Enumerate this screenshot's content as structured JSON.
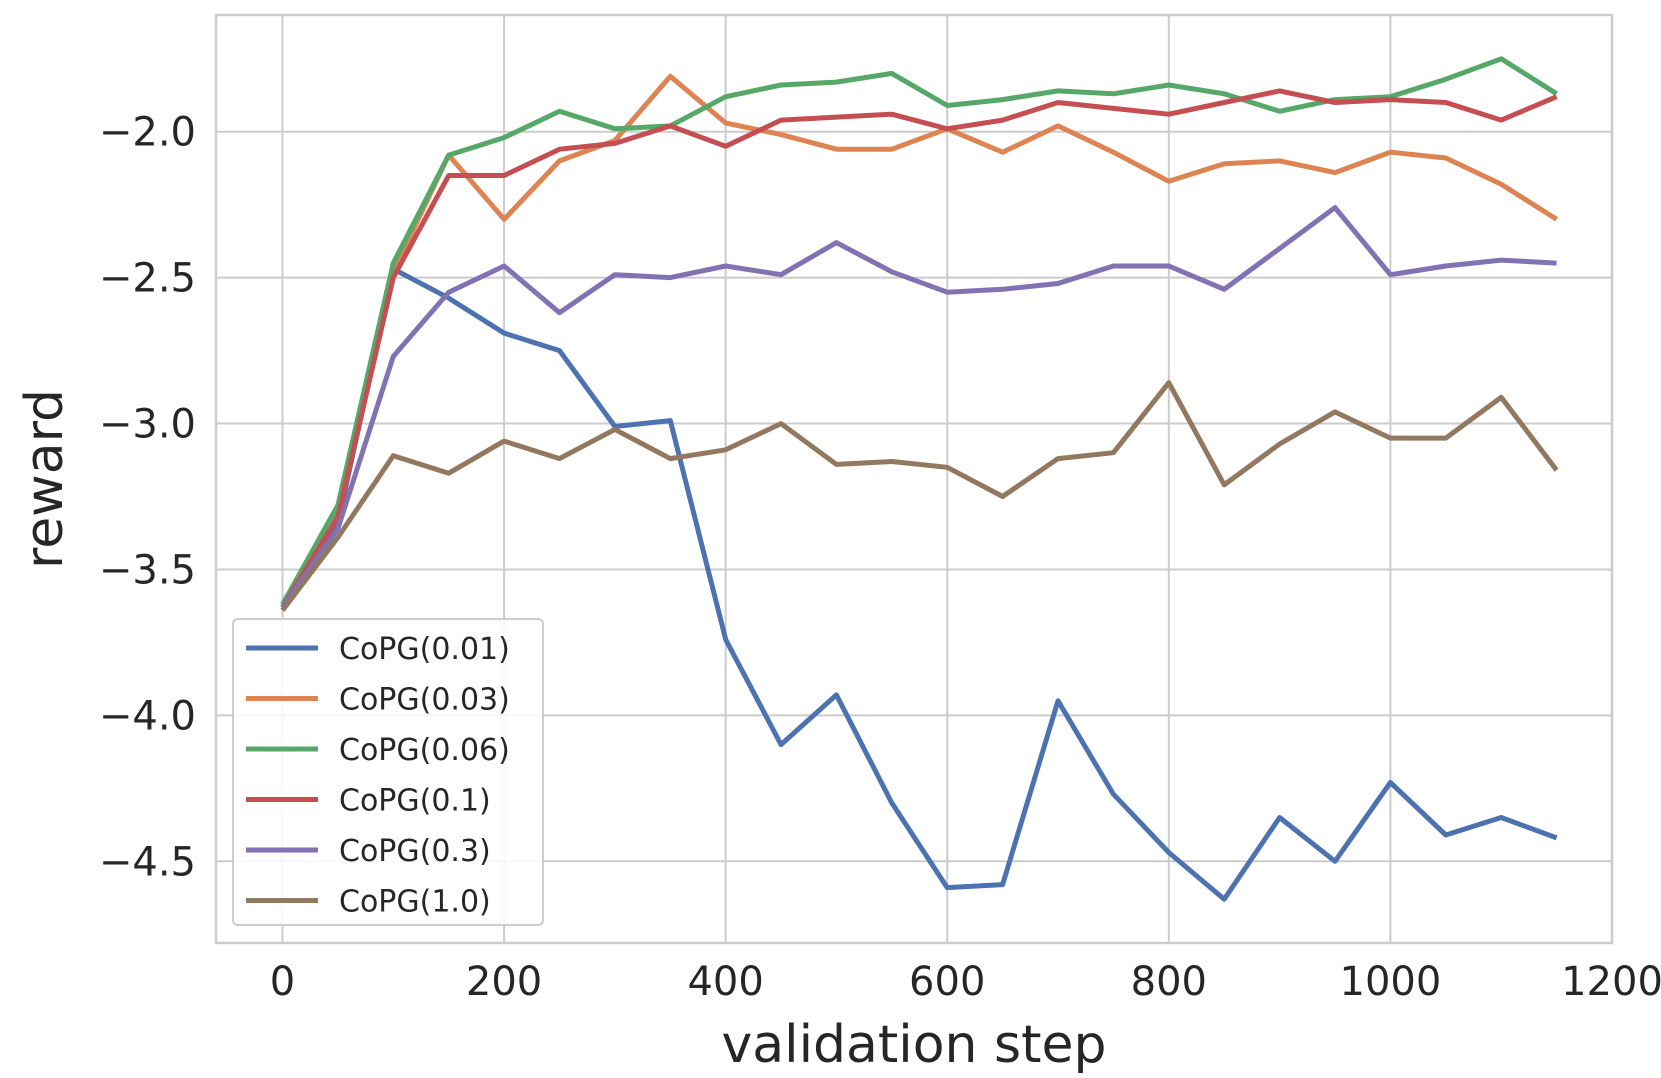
{
  "chart_data": {
    "type": "line",
    "title": "",
    "xlabel": "validation step",
    "ylabel": "reward",
    "xlim": [
      -60,
      1200
    ],
    "ylim": [
      -4.78,
      -1.6
    ],
    "xticks": [
      0,
      200,
      400,
      600,
      800,
      1000,
      1200
    ],
    "xtick_labels": [
      "0",
      "200",
      "400",
      "600",
      "800",
      "1000",
      "1200"
    ],
    "yticks": [
      -2.0,
      -2.5,
      -3.0,
      -3.5,
      -4.0,
      -4.5
    ],
    "ytick_labels": [
      "−2.0",
      "−2.5",
      "−3.0",
      "−3.5",
      "−4.0",
      "−4.5"
    ],
    "grid": true,
    "legend_position": "lower-left",
    "x": [
      0,
      50,
      100,
      150,
      200,
      250,
      300,
      350,
      400,
      450,
      500,
      550,
      600,
      650,
      700,
      750,
      800,
      850,
      900,
      950,
      1000,
      1050,
      1100,
      1150
    ],
    "series": [
      {
        "name": "CoPG(0.01)",
        "color": "#4c72b0",
        "values": [
          -3.63,
          -3.34,
          -2.47,
          -2.57,
          -2.69,
          -2.75,
          -3.01,
          -2.99,
          -3.74,
          -4.1,
          -3.93,
          -4.3,
          -4.59,
          -4.58,
          -3.95,
          -4.27,
          -4.47,
          -4.63,
          -4.35,
          -4.5,
          -4.23,
          -4.41,
          -4.35,
          -4.42
        ]
      },
      {
        "name": "CoPG(0.03)",
        "color": "#dd8452",
        "values": [
          -3.63,
          -3.3,
          -2.48,
          -2.08,
          -2.3,
          -2.1,
          -2.03,
          -1.81,
          -1.97,
          -2.01,
          -2.06,
          -2.06,
          -1.99,
          -2.07,
          -1.98,
          -2.07,
          -2.17,
          -2.11,
          -2.1,
          -2.14,
          -2.07,
          -2.09,
          -2.18,
          -2.3
        ]
      },
      {
        "name": "CoPG(0.06)",
        "color": "#55a868",
        "values": [
          -3.62,
          -3.28,
          -2.45,
          -2.08,
          -2.02,
          -1.93,
          -1.99,
          -1.98,
          -1.88,
          -1.84,
          -1.83,
          -1.8,
          -1.91,
          -1.89,
          -1.86,
          -1.87,
          -1.84,
          -1.87,
          -1.93,
          -1.89,
          -1.88,
          -1.82,
          -1.75,
          -1.87
        ]
      },
      {
        "name": "CoPG(0.1)",
        "color": "#c44e52",
        "values": [
          -3.63,
          -3.32,
          -2.5,
          -2.15,
          -2.15,
          -2.06,
          -2.04,
          -1.98,
          -2.05,
          -1.96,
          -1.95,
          -1.94,
          -1.99,
          -1.96,
          -1.9,
          -1.92,
          -1.94,
          -1.9,
          -1.86,
          -1.9,
          -1.89,
          -1.9,
          -1.96,
          -1.88
        ]
      },
      {
        "name": "CoPG(0.3)",
        "color": "#8172b3",
        "values": [
          -3.63,
          -3.36,
          -2.77,
          -2.55,
          -2.46,
          -2.62,
          -2.49,
          -2.5,
          -2.46,
          -2.49,
          -2.38,
          -2.48,
          -2.55,
          -2.54,
          -2.52,
          -2.46,
          -2.46,
          -2.54,
          -2.4,
          -2.26,
          -2.49,
          -2.46,
          -2.44,
          -2.45
        ]
      },
      {
        "name": "CoPG(1.0)",
        "color": "#937860",
        "values": [
          -3.64,
          -3.39,
          -3.11,
          -3.17,
          -3.06,
          -3.12,
          -3.02,
          -3.12,
          -3.09,
          -3.0,
          -3.14,
          -3.13,
          -3.15,
          -3.25,
          -3.12,
          -3.1,
          -2.86,
          -3.21,
          -3.07,
          -2.96,
          -3.05,
          -3.05,
          -2.91,
          -3.16
        ]
      }
    ]
  }
}
